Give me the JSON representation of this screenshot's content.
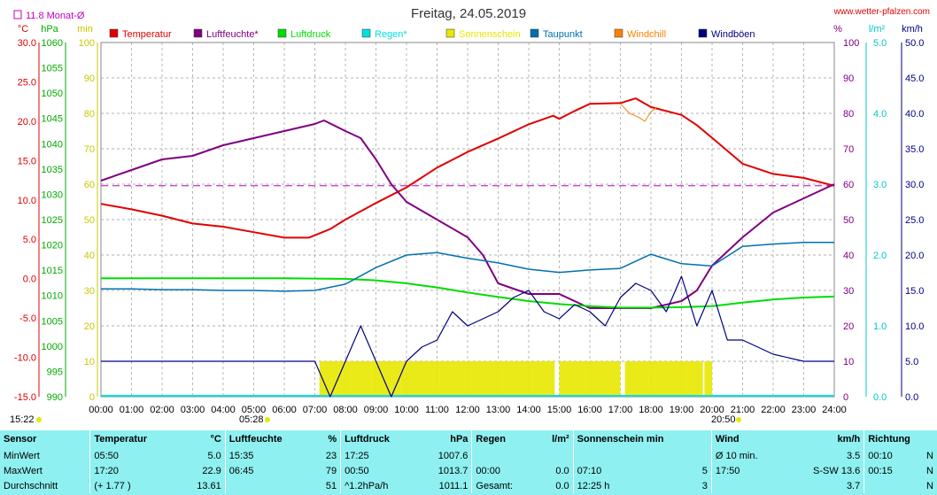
{
  "title": "Freitag, 24.05.2019",
  "site": "www.wetter-pfalzen.com",
  "month_avg_label": "11.8 Monat-Ø",
  "units": {
    "temp": "°C",
    "press": "hPa",
    "minutes": "min",
    "percent": "%",
    "rain": "l/m²",
    "wind": "km/h"
  },
  "legend": [
    {
      "name": "Temperatur",
      "color": "#e00000"
    },
    {
      "name": "Luftfeuchte*",
      "color": "#800080"
    },
    {
      "name": "Luftdruck",
      "color": "#00dd00"
    },
    {
      "name": "Regen*",
      "color": "#00e0e0"
    },
    {
      "name": "Sonnenschein",
      "color": "#e8e800"
    },
    {
      "name": "Taupunkt",
      "color": "#0070b0"
    },
    {
      "name": "Windchill",
      "color": "#ff8000"
    },
    {
      "name": "Windböen",
      "color": "#000080"
    }
  ],
  "time_markers": {
    "left": "15:22",
    "sunrise": "05:28",
    "sunset": "20:50"
  },
  "chart_data": {
    "type": "line",
    "x_label_ticks": [
      "00:00",
      "01:00",
      "02:00",
      "03:00",
      "04:00",
      "05:00",
      "06:00",
      "07:00",
      "08:00",
      "09:00",
      "10:00",
      "11:00",
      "12:00",
      "13:00",
      "14:00",
      "15:00",
      "16:00",
      "17:00",
      "18:00",
      "19:00",
      "20:00",
      "21:00",
      "22:00",
      "23:00",
      "24:00"
    ],
    "axes": {
      "temp": {
        "range": [
          -15,
          30
        ],
        "ticks": [
          "30.0",
          "25.0",
          "20.0",
          "15.0",
          "10.0",
          "5.0",
          "0.0",
          "-5.0",
          "-10.0",
          "-15.0"
        ]
      },
      "pressure": {
        "range": [
          990,
          1060
        ],
        "ticks": [
          "1060",
          "1055",
          "1050",
          "1045",
          "1040",
          "1035",
          "1030",
          "1025",
          "1020",
          "1015",
          "1010",
          "1005",
          "1000",
          "995",
          "990"
        ]
      },
      "minutes": {
        "range": [
          0,
          100
        ],
        "ticks": [
          "100",
          "90",
          "80",
          "70",
          "60",
          "50",
          "40",
          "30",
          "20",
          "10",
          "0"
        ]
      },
      "percent": {
        "range": [
          0,
          100
        ],
        "ticks": [
          "100",
          "90",
          "80",
          "70",
          "60",
          "50",
          "40",
          "30",
          "20",
          "10",
          "0"
        ]
      },
      "rain": {
        "range": [
          0,
          5
        ],
        "ticks": [
          "5.0",
          "4.0",
          "3.0",
          "2.0",
          "1.0",
          "0.0"
        ]
      },
      "wind": {
        "range": [
          0,
          50
        ],
        "ticks": [
          "50.0",
          "45.0",
          "40.0",
          "35.0",
          "30.0",
          "25.0",
          "20.0",
          "15.0",
          "10.0",
          "5.0",
          "0.0"
        ]
      }
    },
    "month_avg_temp": 11.8,
    "series": [
      {
        "name": "Temperatur",
        "color": "#e00000",
        "axis": "temp",
        "x": [
          0,
          1,
          2,
          3,
          4,
          5,
          6,
          6.8,
          7.5,
          8,
          9,
          10,
          11,
          12,
          13,
          14,
          14.8,
          15,
          15.5,
          16,
          17,
          17.5,
          18,
          19,
          19.5,
          20,
          21,
          22,
          23,
          24
        ],
        "y": [
          9.5,
          8.8,
          8.0,
          7.0,
          6.6,
          5.9,
          5.2,
          5.2,
          6.3,
          7.5,
          9.6,
          11.6,
          14.1,
          16.1,
          17.8,
          19.6,
          20.7,
          20.3,
          21.3,
          22.2,
          22.3,
          22.9,
          21.8,
          20.8,
          19.5,
          17.9,
          14.6,
          13.3,
          12.8,
          11.8
        ]
      },
      {
        "name": "Luftfeuchte*",
        "color": "#800080",
        "axis": "percent",
        "x": [
          0,
          1,
          2,
          3,
          4,
          5,
          6,
          7,
          7.3,
          8,
          8.5,
          9,
          9.5,
          10,
          11,
          12,
          12.5,
          13,
          14,
          15,
          16,
          17,
          18,
          19,
          19.5,
          20,
          21,
          22,
          23,
          24
        ],
        "y": [
          61,
          64,
          67,
          68,
          71,
          73,
          75,
          77,
          78,
          75,
          73,
          67,
          60,
          55,
          50,
          45,
          40,
          32,
          29,
          29,
          25,
          25,
          25,
          27,
          30,
          37,
          45,
          52,
          56,
          60
        ]
      },
      {
        "name": "Luftdruck",
        "color": "#00dd00",
        "axis": "pressure",
        "x": [
          0,
          2,
          4,
          6,
          8,
          9,
          10,
          11,
          12,
          13,
          14,
          15,
          16,
          17,
          18,
          19,
          20,
          21,
          22,
          23,
          24
        ],
        "y": [
          1013.4,
          1013.4,
          1013.4,
          1013.4,
          1013.3,
          1013.0,
          1012.4,
          1011.6,
          1010.6,
          1009.7,
          1008.9,
          1008.3,
          1007.9,
          1007.6,
          1007.6,
          1007.7,
          1007.9,
          1008.6,
          1009.2,
          1009.6,
          1009.8
        ]
      },
      {
        "name": "Taupunkt",
        "color": "#0070b0",
        "axis": "temp",
        "x": [
          0,
          1,
          2,
          3,
          4,
          5,
          6,
          7,
          8,
          9,
          10,
          11,
          12,
          13,
          14,
          15,
          16,
          17,
          18,
          19,
          20,
          21,
          22,
          23,
          24
        ],
        "y": [
          -1.3,
          -1.3,
          -1.4,
          -1.4,
          -1.5,
          -1.5,
          -1.6,
          -1.5,
          -0.7,
          1.4,
          3.0,
          3.3,
          2.6,
          2.0,
          1.2,
          0.8,
          1.1,
          1.3,
          3.1,
          1.9,
          1.6,
          4.1,
          4.4,
          4.6,
          4.6
        ]
      },
      {
        "name": "Windchill",
        "color": "#ff8000",
        "axis": "temp",
        "x": [
          17.0,
          17.3,
          17.6,
          17.8,
          18.0,
          18.2
        ],
        "y": [
          22.2,
          21.0,
          20.5,
          20.0,
          21.2,
          21.8
        ]
      },
      {
        "name": "Windböen",
        "color": "#000080",
        "axis": "wind",
        "x": [
          0,
          1,
          2,
          3,
          4,
          5,
          6,
          7,
          7.5,
          8,
          8.5,
          9,
          9.5,
          10,
          10.5,
          11,
          11.5,
          12,
          12.5,
          13,
          13.5,
          14,
          14.5,
          15,
          15.5,
          16,
          16.5,
          17,
          17.5,
          18,
          18.5,
          19,
          19.5,
          20,
          20.5,
          21,
          21.5,
          22,
          23,
          24
        ],
        "y": [
          5,
          5,
          5,
          5,
          5,
          5,
          5,
          5,
          0,
          5,
          10,
          5,
          0,
          5,
          7,
          8,
          12,
          10,
          11,
          12,
          14,
          15,
          12,
          11,
          13,
          12,
          10,
          14,
          16,
          15,
          12,
          17,
          10,
          15,
          8,
          8,
          7,
          6,
          5,
          5
        ]
      }
    ],
    "sunshine_bars": [
      [
        7.15,
        9.8
      ],
      [
        9.8,
        14.85
      ],
      [
        15.0,
        17.0
      ],
      [
        17.15,
        19.7
      ],
      [
        19.75,
        20.0
      ]
    ]
  },
  "stats": {
    "headers": [
      "Sensor",
      "Temperatur",
      "°C",
      "Luftfeuchte",
      "%",
      "Luftdruck",
      "hPa",
      "Regen",
      "l/m²",
      "Sonnenschein min",
      "Wind",
      "km/h",
      "Richtung"
    ],
    "rows": [
      [
        "MinWert",
        "05:50",
        "5.0",
        "15:35",
        "23",
        "17:25",
        "1007.6",
        "",
        "",
        "",
        "Ø 10 min.",
        "3.5",
        "00:10",
        "N"
      ],
      [
        "MaxWert",
        "17:20",
        "22.9",
        "06:45",
        "79",
        "00:50",
        "1013.7",
        "00:00",
        "0.0",
        "07:10",
        "5",
        "17:50",
        "S-SW 13.6",
        "00:15",
        "N"
      ],
      [
        "Durchschnitt",
        "(+ 1.77 )",
        "13.61",
        "",
        "51",
        "^1.2hPa/h",
        "1011.1",
        "Gesamt:",
        "0.0",
        "12:25 h",
        "3",
        "",
        "3.7",
        "",
        "N"
      ]
    ]
  }
}
